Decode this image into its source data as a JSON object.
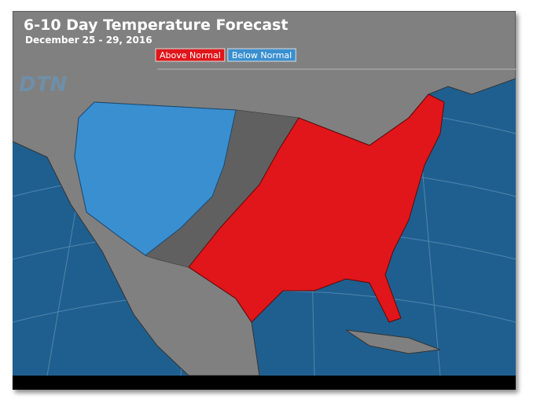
{
  "header": {
    "title": "6-10 Day Temperature Forecast",
    "subtitle": "December 25 - 29, 2016",
    "watermark": "DTN"
  },
  "legend": {
    "items": [
      {
        "label": "Above Normal",
        "color": "#e0161b"
      },
      {
        "label": "Below Normal",
        "color": "#3a8fd0"
      }
    ]
  }
}
